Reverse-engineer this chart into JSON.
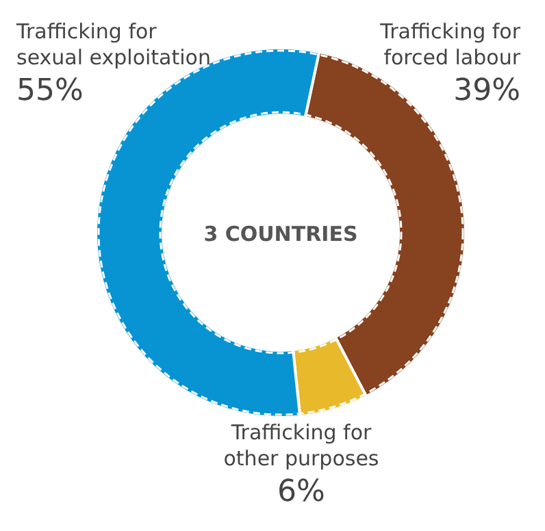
{
  "chart_data": {
    "type": "donut",
    "title": "3 COUNTRIES",
    "categories": [
      "Trafficking for forced labour",
      "Trafficking for other purposes",
      "Trafficking for sexual exploitation"
    ],
    "values": [
      39,
      6,
      55
    ],
    "colors": [
      "#87421f",
      "#e8b92b",
      "#0894d3"
    ],
    "value_labels": [
      "39%",
      "6%",
      "55%"
    ]
  }
}
